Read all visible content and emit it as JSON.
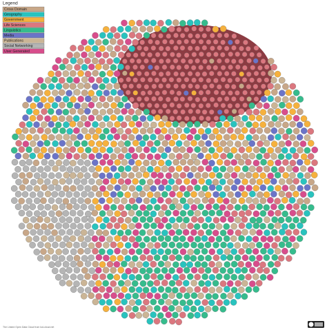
{
  "legend": {
    "title": "Legend",
    "items": [
      {
        "label": "Cross Domain",
        "color": "#c8a788"
      },
      {
        "label": "Geography",
        "color": "#29c3be"
      },
      {
        "label": "Government",
        "color": "#f6b13d"
      },
      {
        "label": "Life Sciences",
        "color": "#db777f"
      },
      {
        "label": "Linguistics",
        "color": "#36bc8d"
      },
      {
        "label": "Media",
        "color": "#6b74c8"
      },
      {
        "label": "Publications",
        "color": "#cbb596"
      },
      {
        "label": "Social Networking",
        "color": "#b5b5b5"
      },
      {
        "label": "User Generated",
        "color": "#d84d8c"
      }
    ]
  },
  "footer": "The Linked Open Data Cloud from lod-cloud.net"
}
